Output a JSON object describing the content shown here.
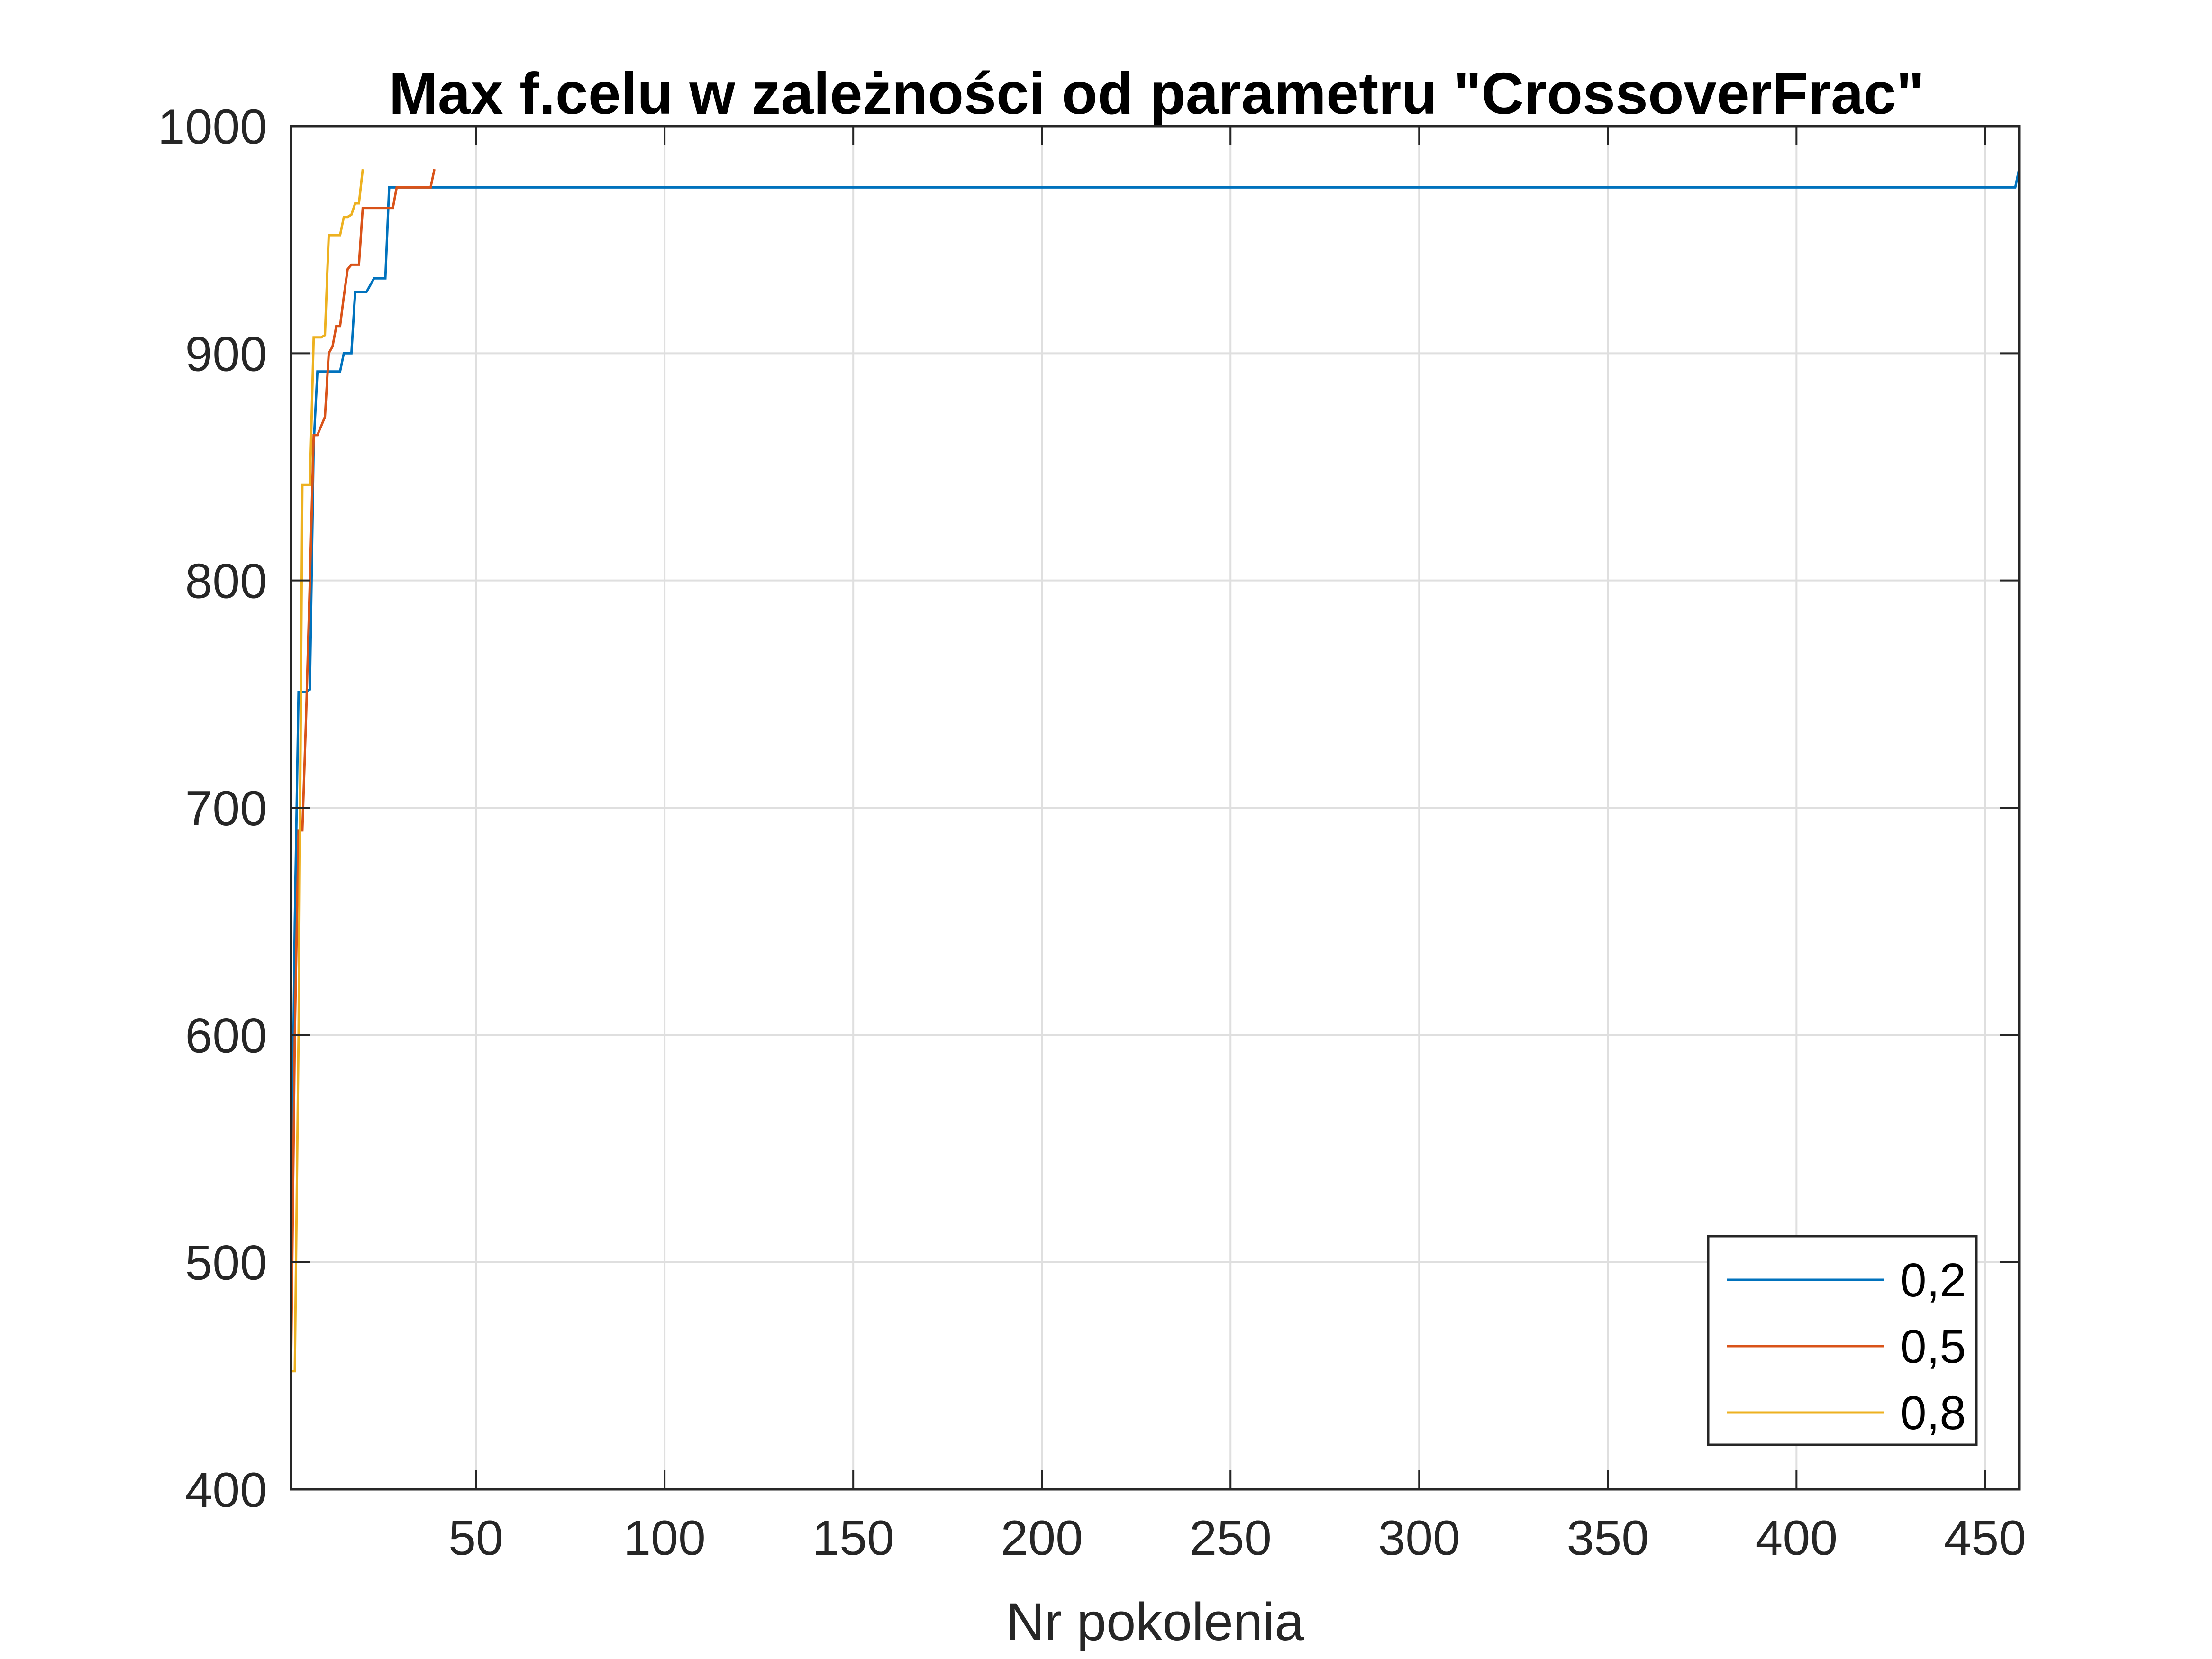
{
  "chart_data": {
    "type": "line",
    "title": "Max f.celu w zależności od parametru \"CrossoverFrac\"",
    "xlabel": "Nr pokolenia",
    "ylabel": "",
    "xlim": [
      1,
      459
    ],
    "ylim": [
      400,
      1000
    ],
    "xticks": [
      50,
      100,
      150,
      200,
      250,
      300,
      350,
      400,
      450
    ],
    "yticks": [
      400,
      500,
      600,
      700,
      800,
      900,
      1000
    ],
    "xtick_labels": [
      "50",
      "100",
      "150",
      "200",
      "250",
      "300",
      "350",
      "400",
      "450"
    ],
    "ytick_labels": [
      "400",
      "500",
      "600",
      "700",
      "800",
      "900",
      "1000"
    ],
    "grid": true,
    "legend_position": "bottom-right",
    "series": [
      {
        "name": "0,2",
        "color": "#0072bd",
        "x": [
          1,
          2,
          3,
          4,
          5,
          6,
          7,
          8,
          14,
          15,
          17,
          18,
          20,
          21,
          23,
          24,
          26,
          27,
          28,
          29,
          458,
          459
        ],
        "y": [
          502,
          650,
          751,
          751,
          751,
          752,
          860,
          892,
          892,
          900,
          900,
          927,
          927,
          927,
          933,
          933,
          933,
          973,
          973,
          973,
          973,
          981
        ]
      },
      {
        "name": "0,5",
        "color": "#d95319",
        "x": [
          1,
          2,
          3,
          4,
          5,
          6,
          7,
          8,
          9,
          10,
          11,
          12,
          13,
          14,
          15,
          16,
          17,
          18,
          19,
          20,
          21,
          22,
          25,
          26,
          28,
          29,
          38,
          39
        ],
        "y": [
          452,
          600,
          690,
          690,
          740,
          800,
          864,
          864,
          868,
          872,
          900,
          903,
          912,
          912,
          925,
          937,
          939,
          939,
          939,
          964,
          964,
          964,
          964,
          964,
          964,
          973,
          973,
          981
        ]
      },
      {
        "name": "0,8",
        "color": "#edb120",
        "x": [
          1,
          2,
          3,
          4,
          5,
          6,
          7,
          8,
          9,
          10,
          11,
          12,
          13,
          14,
          15,
          16,
          17,
          18,
          19,
          20
        ],
        "y": [
          452,
          452,
          600,
          842,
          842,
          842,
          907,
          907,
          907,
          908,
          952,
          952,
          952,
          952,
          960,
          960,
          961,
          966,
          966,
          981
        ]
      }
    ]
  }
}
